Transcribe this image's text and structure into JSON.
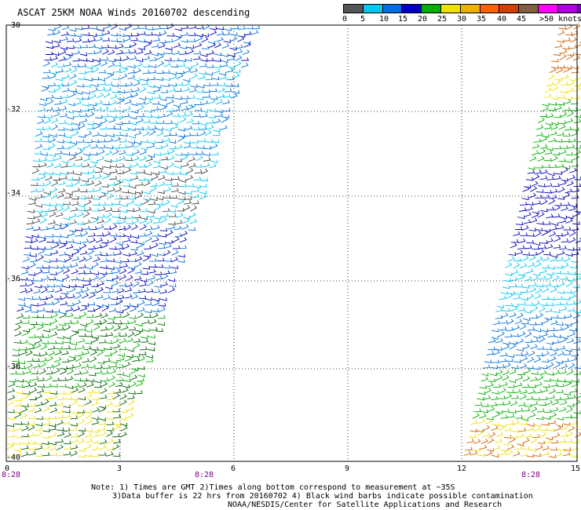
{
  "title": "ASCAT 25KM NOAA Winds 20160702 descending",
  "legend": {
    "colors": [
      "#555555",
      "#00c8f0",
      "#0070e0",
      "#0000c0",
      "#00b000",
      "#f0e000",
      "#f0b000",
      "#ff6000",
      "#d04000",
      "#806040",
      "#ff00ff",
      "#b000e0",
      "#6a00b0"
    ],
    "labels": [
      "0",
      "5",
      "10",
      "15",
      "20",
      "25",
      "30",
      "35",
      "40",
      "45",
      ">50 knots"
    ]
  },
  "lat_labels": [
    "-30",
    "-32",
    "-34",
    "-36",
    "-38",
    "-40"
  ],
  "lon_labels": [
    "0",
    "3",
    "6",
    "9",
    "12",
    "15"
  ],
  "time_labels": [
    "8:28",
    "8:28",
    "8:28"
  ],
  "notes": [
    "Note: 1) Times are GMT 2)Times along bottom correspond to measurement at ~35S",
    "3)Data buffer is 22 hrs from 20160702 4) Black wind barbs indicate possible contamination",
    "NOAA/NESDIS/Center for Satellite Applications and Research"
  ]
}
